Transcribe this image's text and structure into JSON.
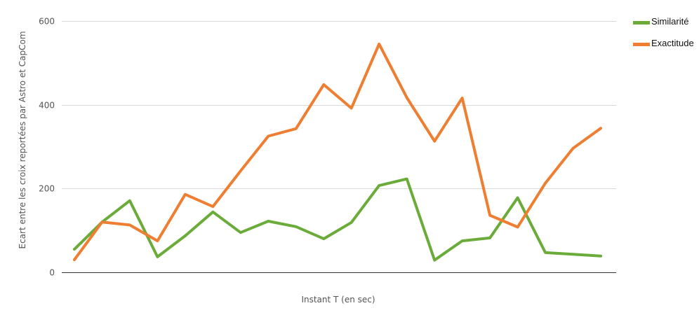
{
  "chart_data": {
    "type": "line",
    "title": "",
    "xlabel": "Instant T (en sec)",
    "ylabel": "Ecart entre les croix reportées par Astro et CapCom",
    "ylim": [
      0,
      600
    ],
    "yticks": [
      0,
      200,
      400,
      600
    ],
    "grid": true,
    "legend_position": "top-right",
    "x": [
      1,
      2,
      3,
      4,
      5,
      6,
      7,
      8,
      9,
      10,
      11,
      12,
      13,
      14,
      15,
      16,
      17,
      18,
      19,
      20
    ],
    "series": [
      {
        "name": "Similarité",
        "color": "#6aab3a",
        "values": [
          55,
          120,
          171,
          37,
          87,
          144,
          95,
          122,
          109,
          80,
          119,
          207,
          223,
          29,
          75,
          82,
          178,
          47,
          43,
          39
        ]
      },
      {
        "name": "Exactitude",
        "color": "#ee7e31",
        "values": [
          30,
          120,
          113,
          75,
          186,
          157,
          242,
          325,
          343,
          448,
          392,
          545,
          417,
          313,
          416,
          136,
          108,
          213,
          296,
          344
        ]
      }
    ]
  }
}
